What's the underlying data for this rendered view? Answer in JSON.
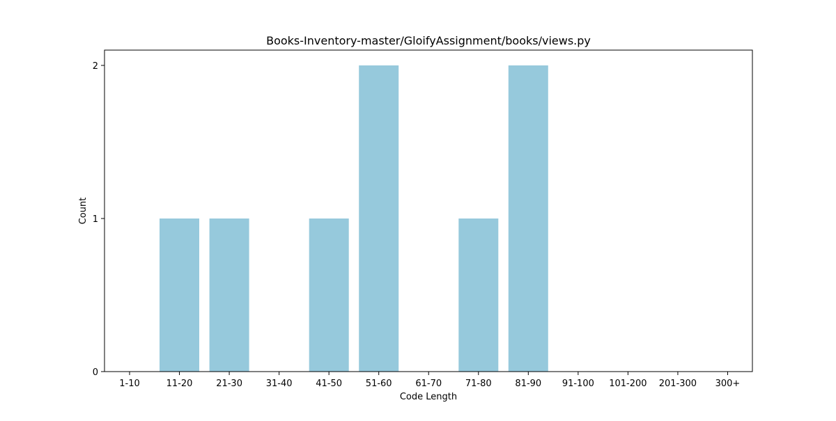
{
  "chart_data": {
    "type": "bar",
    "title": "Books-Inventory-master/GloifyAssignment/books/views.py",
    "xlabel": "Code Length",
    "ylabel": "Count",
    "categories": [
      "1-10",
      "11-20",
      "21-30",
      "31-40",
      "41-50",
      "51-60",
      "61-70",
      "71-80",
      "81-90",
      "91-100",
      "101-200",
      "201-300",
      "300+"
    ],
    "values": [
      0,
      1,
      1,
      0,
      1,
      2,
      0,
      1,
      2,
      0,
      0,
      0,
      0
    ],
    "yticks": [
      0,
      1,
      2
    ],
    "ylim": [
      0,
      2.1
    ],
    "bar_color": "#96c9dc",
    "grid": false,
    "legend": "none"
  }
}
